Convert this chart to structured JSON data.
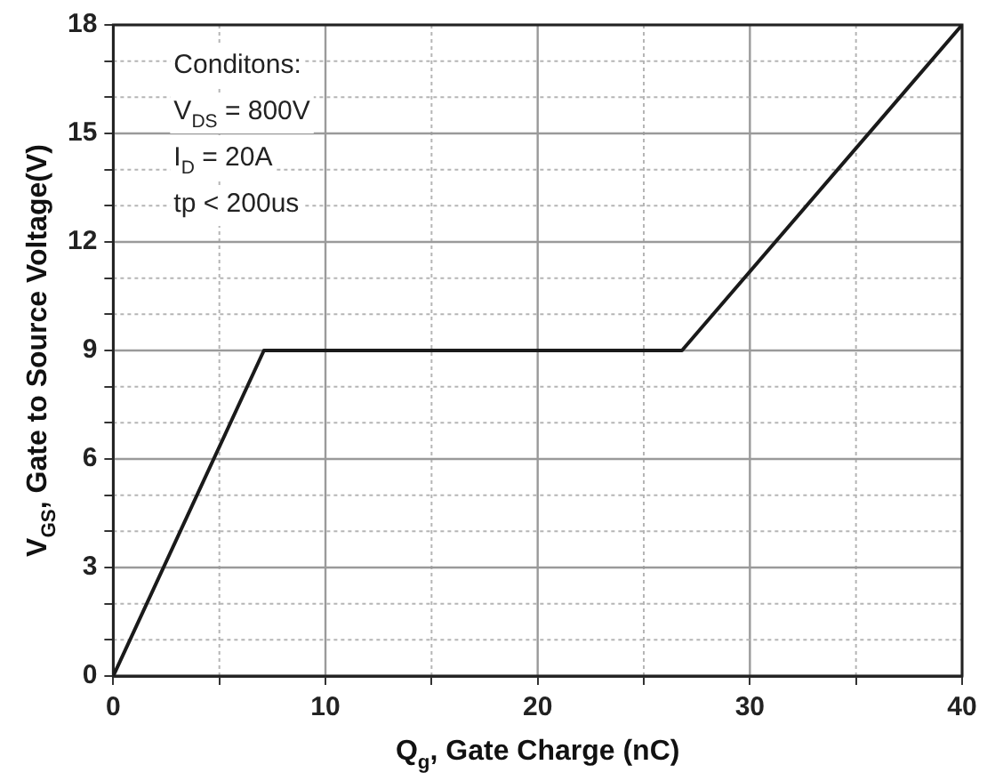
{
  "chart_data": {
    "type": "line",
    "xlabel": "Q$_{g}$, Gate Charge (nC)",
    "ylabel": "V$_{GS}$, Gate to Source Voltage(V)",
    "x": [
      0,
      7.1,
      26.8,
      40
    ],
    "series": [
      {
        "color": "#1a1a1a",
        "values": [
          0,
          9,
          9,
          18
        ]
      }
    ],
    "xlim": [
      0,
      40
    ],
    "xticks": [
      0,
      {
        "value": 5,
        "label": null
      },
      10,
      {
        "value": 15,
        "label": null
      },
      20,
      {
        "value": 25,
        "label": null
      },
      30,
      {
        "value": 35,
        "label": null
      },
      40
    ],
    "ylim": [
      0,
      18
    ],
    "yticks": [
      0,
      {
        "value": 1,
        "label": null
      },
      {
        "value": 2,
        "label": null
      },
      3,
      {
        "value": 4,
        "label": null
      },
      {
        "value": 5,
        "label": null
      },
      6,
      {
        "value": 7,
        "label": null
      },
      {
        "value": 8,
        "label": null
      },
      9,
      {
        "value": 10,
        "label": null
      },
      {
        "value": 11,
        "label": null
      },
      12,
      {
        "value": 13,
        "label": null
      },
      {
        "value": 14,
        "label": null
      },
      15,
      {
        "value": 16,
        "label": null
      },
      {
        "value": 17,
        "label": null
      },
      18
    ],
    "grid": true,
    "legend": false,
    "marker": "none",
    "line_style": "solid",
    "annotations": [
      "Conditons:",
      "V$_{DS}$ = 800V",
      "I$_{D}$ = 20A",
      "tp < 200us"
    ]
  }
}
